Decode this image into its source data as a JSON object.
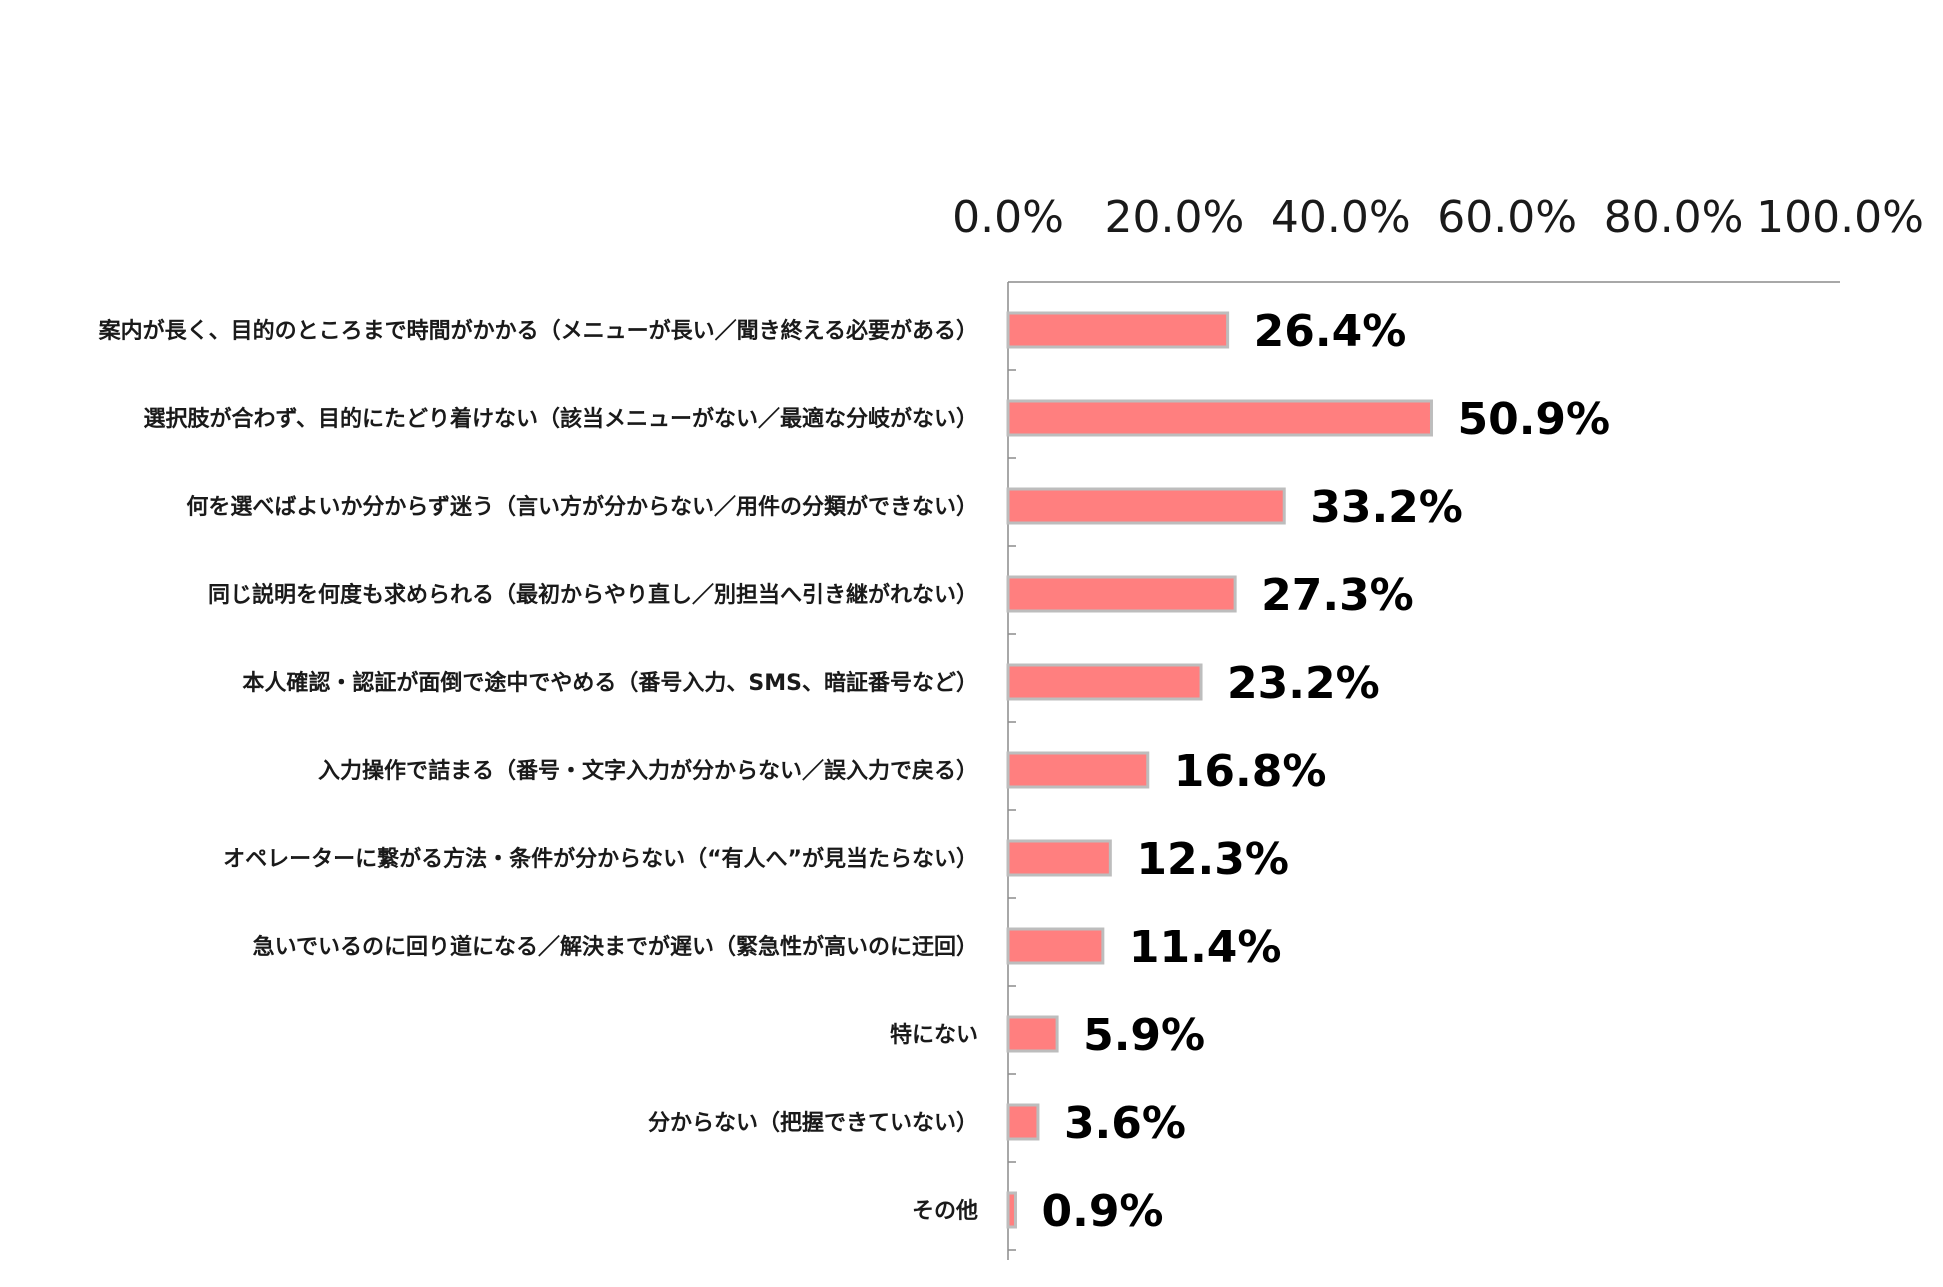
{
  "chart_data": {
    "type": "bar",
    "orientation": "horizontal",
    "title": "",
    "xlabel": "",
    "ylabel": "",
    "xlim": [
      0,
      100
    ],
    "x_ticks": [
      "0.0%",
      "20.0%",
      "40.0%",
      "60.0%",
      "80.0%",
      "100.0%"
    ],
    "x_axis_position": "top",
    "grid": false,
    "legend": "none",
    "bar_color": "#ff7f7f",
    "bar_border_color": "#bdbdbd",
    "categories": [
      "案内が長く、目的のところまで時間がかかる（メニューが長い／聞き終える必要がある）",
      "選択肢が合わず、目的にたどり着けない（該当メニューがない／最適な分岐がない）",
      "何を選べばよいか分からず迷う（言い方が分からない／用件の分類ができない）",
      "同じ説明を何度も求められる（最初からやり直し／別担当へ引き継がれない）",
      "本人確認・認証が面倒で途中でやめる（番号入力、SMS、暗証番号など）",
      "入力操作で詰まる（番号・文字入力が分からない／誤入力で戻る）",
      "オペレーターに繋がる方法・条件が分からない（“有人へ”が見当たらない）",
      "急いでいるのに回り道になる／解決までが遅い（緊急性が高いのに迂回）",
      "特にない",
      "分からない（把握できていない）",
      "その他"
    ],
    "values": [
      26.4,
      50.9,
      33.2,
      27.3,
      23.2,
      16.8,
      12.3,
      11.4,
      5.9,
      3.6,
      0.9
    ],
    "value_labels": [
      "26.4%",
      "50.9%",
      "33.2%",
      "27.3%",
      "23.2%",
      "16.8%",
      "12.3%",
      "11.4%",
      "5.9%",
      "3.6%",
      "0.9%"
    ]
  }
}
